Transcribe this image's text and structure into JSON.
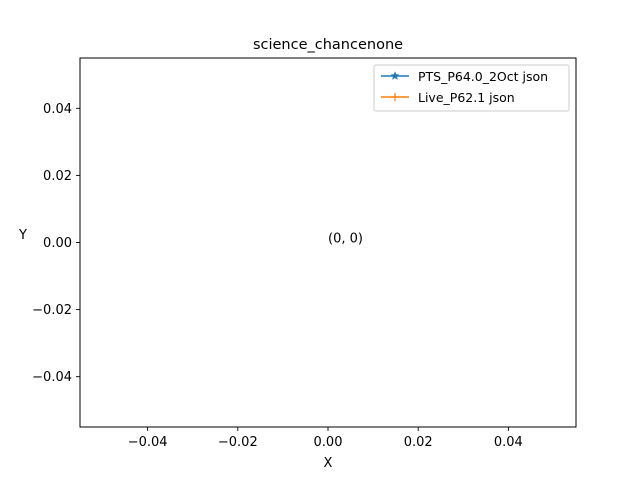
{
  "chart_data": {
    "type": "line",
    "title": "science_chancenone",
    "xlabel": "X",
    "ylabel": "Y",
    "xlim": [
      -0.055,
      0.055
    ],
    "ylim": [
      -0.055,
      0.055
    ],
    "x_ticks": [
      -0.04,
      -0.02,
      0.0,
      0.02,
      0.04
    ],
    "x_tick_labels": [
      "−0.04",
      "−0.02",
      "0.00",
      "0.02",
      "0.04"
    ],
    "y_ticks": [
      0.04,
      0.02,
      0.0,
      -0.02,
      -0.04
    ],
    "y_tick_labels": [
      "0.04",
      "0.02",
      "0.00",
      "−0.02",
      "−0.04"
    ],
    "grid": false,
    "legend_position": "top-right",
    "series": [
      {
        "name": "PTS_P64.0_2Oct json",
        "color": "#1f77b4",
        "marker": "star",
        "x": [
          0
        ],
        "y": [
          0
        ]
      },
      {
        "name": "Live_P62.1 json",
        "color": "#ff7f0e",
        "marker": "plus",
        "x": [
          0
        ],
        "y": [
          0
        ]
      }
    ],
    "annotations": [
      {
        "text": "(0, 0)",
        "x": 0,
        "y": 0
      }
    ]
  }
}
